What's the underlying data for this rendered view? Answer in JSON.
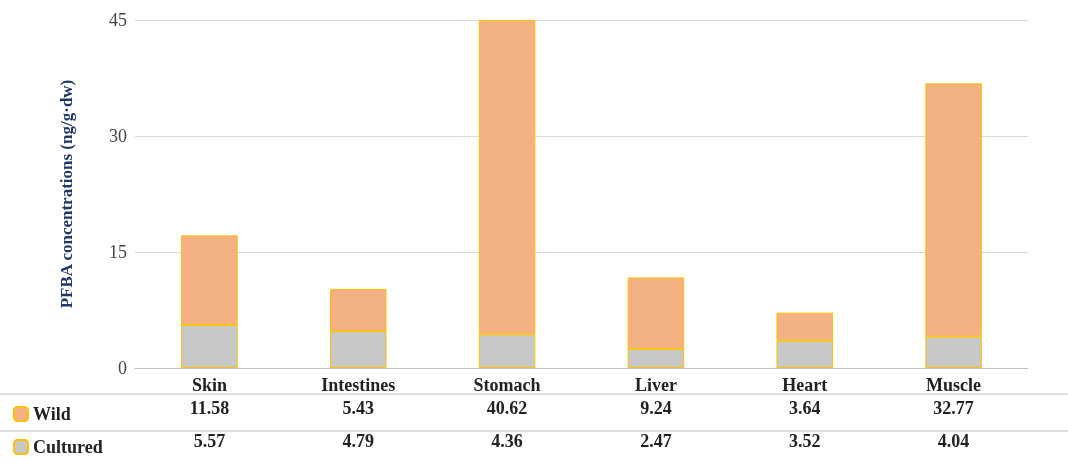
{
  "chart_data": {
    "type": "bar",
    "stacked": true,
    "ylabel": "PFBA concentrations (ng/g·dw)",
    "categories": [
      "Skin",
      "Intestines",
      "Stomach",
      "Liver",
      "Heart",
      "Muscle"
    ],
    "series": [
      {
        "name": "Cultured",
        "color": "#c8c8c8",
        "values": [
          5.57,
          4.79,
          4.36,
          2.47,
          3.52,
          4.04
        ]
      },
      {
        "name": "Wild",
        "color": "#f4b183",
        "values": [
          11.58,
          5.43,
          40.62,
          9.24,
          3.64,
          32.77
        ]
      }
    ],
    "ylim": [
      0,
      45
    ],
    "yticks": [
      0,
      15,
      30,
      45
    ],
    "grid": "y",
    "legend": "bottom left",
    "data_labels": true
  }
}
